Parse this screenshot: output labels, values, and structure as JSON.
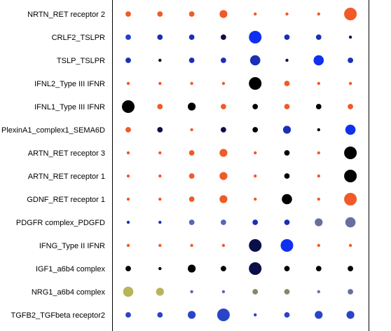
{
  "chart_data": {
    "type": "scatter",
    "title": "",
    "xlabel": "",
    "ylabel": "",
    "grid": false,
    "legend": "none",
    "columns": 8,
    "rows": [
      {
        "label": "NRTN_RET receptor 2",
        "points": [
          {
            "size": 2,
            "color": "#f05a28"
          },
          {
            "size": 2,
            "color": "#f05a28"
          },
          {
            "size": 2,
            "color": "#f05a28"
          },
          {
            "size": 3,
            "color": "#f05a28"
          },
          {
            "size": 1,
            "color": "#f05a28"
          },
          {
            "size": 1,
            "color": "#f05a28"
          },
          {
            "size": 1,
            "color": "#f05a28"
          },
          {
            "size": 5,
            "color": "#f05a28"
          }
        ]
      },
      {
        "label": "CRLF2_TSLPR",
        "points": [
          {
            "size": 2,
            "color": "#1f3fd4"
          },
          {
            "size": 2,
            "color": "#1a2fb8"
          },
          {
            "size": 2,
            "color": "#1a2fb8"
          },
          {
            "size": 2,
            "color": "#0a0f4a"
          },
          {
            "size": 5,
            "color": "#1030f0"
          },
          {
            "size": 2,
            "color": "#1a2fb8"
          },
          {
            "size": 2,
            "color": "#1a2fb8"
          },
          {
            "size": 1,
            "color": "#0a0f4a"
          }
        ]
      },
      {
        "label": "TSLP_TSLPR",
        "points": [
          {
            "size": 2,
            "color": "#1a2fb8"
          },
          {
            "size": 1,
            "color": "#000000"
          },
          {
            "size": 2,
            "color": "#1a2fb8"
          },
          {
            "size": 2,
            "color": "#1a2fb8"
          },
          {
            "size": 4,
            "color": "#1a2fb8"
          },
          {
            "size": 1,
            "color": "#0a0f4a"
          },
          {
            "size": 4,
            "color": "#1030f0"
          },
          {
            "size": 2,
            "color": "#1a2fb8"
          }
        ]
      },
      {
        "label": "IFNL2_Type III IFNR",
        "points": [
          {
            "size": 1,
            "color": "#f05a28"
          },
          {
            "size": 1,
            "color": "#f05a28"
          },
          {
            "size": 1,
            "color": "#f05a28"
          },
          {
            "size": 1,
            "color": "#f05a28"
          },
          {
            "size": 5,
            "color": "#000000"
          },
          {
            "size": 2,
            "color": "#f05a28"
          },
          {
            "size": 1,
            "color": "#f05a28"
          },
          {
            "size": 1,
            "color": "#f05a28"
          }
        ]
      },
      {
        "label": "IFNL1_Type III IFNR",
        "points": [
          {
            "size": 5,
            "color": "#000000"
          },
          {
            "size": 2,
            "color": "#f05a28"
          },
          {
            "size": 3,
            "color": "#000000"
          },
          {
            "size": 2,
            "color": "#f05a28"
          },
          {
            "size": 2,
            "color": "#000000"
          },
          {
            "size": 2,
            "color": "#f05a28"
          },
          {
            "size": 2,
            "color": "#000000"
          },
          {
            "size": 2,
            "color": "#f05a28"
          }
        ]
      },
      {
        "label": "PlexinA1_complex1_SEMA6D",
        "points": [
          {
            "size": 2,
            "color": "#f05a28"
          },
          {
            "size": 2,
            "color": "#0a0f4a"
          },
          {
            "size": 1,
            "color": "#f05a28"
          },
          {
            "size": 2,
            "color": "#0a0f4a"
          },
          {
            "size": 2,
            "color": "#000000"
          },
          {
            "size": 3,
            "color": "#1a2fb8"
          },
          {
            "size": 1,
            "color": "#000000"
          },
          {
            "size": 4,
            "color": "#1030f0"
          }
        ]
      },
      {
        "label": "ARTN_RET receptor 3",
        "points": [
          {
            "size": 1,
            "color": "#f05a28"
          },
          {
            "size": 1,
            "color": "#f05a28"
          },
          {
            "size": 2,
            "color": "#f05a28"
          },
          {
            "size": 3,
            "color": "#f05a28"
          },
          {
            "size": 1,
            "color": "#f05a28"
          },
          {
            "size": 2,
            "color": "#000000"
          },
          {
            "size": 1,
            "color": "#f05a28"
          },
          {
            "size": 5,
            "color": "#000000"
          }
        ]
      },
      {
        "label": "ARTN_RET receptor 1",
        "points": [
          {
            "size": 1,
            "color": "#f05a28"
          },
          {
            "size": 1,
            "color": "#f05a28"
          },
          {
            "size": 2,
            "color": "#f05a28"
          },
          {
            "size": 3,
            "color": "#f05a28"
          },
          {
            "size": 1,
            "color": "#f05a28"
          },
          {
            "size": 2,
            "color": "#000000"
          },
          {
            "size": 1,
            "color": "#f05a28"
          },
          {
            "size": 5,
            "color": "#000000"
          }
        ]
      },
      {
        "label": "GDNF_RET receptor 1",
        "points": [
          {
            "size": 1,
            "color": "#f05a28"
          },
          {
            "size": 1,
            "color": "#f05a28"
          },
          {
            "size": 2,
            "color": "#f05a28"
          },
          {
            "size": 3,
            "color": "#f05a28"
          },
          {
            "size": 1,
            "color": "#f05a28"
          },
          {
            "size": 4,
            "color": "#000000"
          },
          {
            "size": 1,
            "color": "#f05a28"
          },
          {
            "size": 5,
            "color": "#f05a28"
          }
        ]
      },
      {
        "label": "PDGFR complex_PDGFD",
        "points": [
          {
            "size": 1,
            "color": "#1a2fb8"
          },
          {
            "size": 1,
            "color": "#1a2fb8"
          },
          {
            "size": 2,
            "color": "#5866b0"
          },
          {
            "size": 2,
            "color": "#5866b0"
          },
          {
            "size": 2,
            "color": "#1a2fb8"
          },
          {
            "size": 2,
            "color": "#1a2fb8"
          },
          {
            "size": 3,
            "color": "#676f9e"
          },
          {
            "size": 4,
            "color": "#676f9e"
          }
        ]
      },
      {
        "label": "IFNG_Type II IFNR",
        "points": [
          {
            "size": 1,
            "color": "#f05a28"
          },
          {
            "size": 1,
            "color": "#f05a28"
          },
          {
            "size": 1,
            "color": "#f05a28"
          },
          {
            "size": 1,
            "color": "#f05a28"
          },
          {
            "size": 5,
            "color": "#0a0f4a"
          },
          {
            "size": 5,
            "color": "#1030f0"
          },
          {
            "size": 1,
            "color": "#f05a28"
          },
          {
            "size": 1,
            "color": "#f05a28"
          }
        ]
      },
      {
        "label": "IGF1_a6b4 complex",
        "points": [
          {
            "size": 2,
            "color": "#000000"
          },
          {
            "size": 1,
            "color": "#000000"
          },
          {
            "size": 3,
            "color": "#000000"
          },
          {
            "size": 2,
            "color": "#000000"
          },
          {
            "size": 5,
            "color": "#0a0f4a"
          },
          {
            "size": 2,
            "color": "#000000"
          },
          {
            "size": 2,
            "color": "#000000"
          },
          {
            "size": 2,
            "color": "#000000"
          }
        ]
      },
      {
        "label": "NRG1_a6b4 complex",
        "points": [
          {
            "size": 4,
            "color": "#b5b55a"
          },
          {
            "size": 3,
            "color": "#b5b55a"
          },
          {
            "size": 1,
            "color": "#5866b0"
          },
          {
            "size": 1,
            "color": "#5866b0"
          },
          {
            "size": 2,
            "color": "#7f8a6a"
          },
          {
            "size": 2,
            "color": "#7f8a6a"
          },
          {
            "size": 1,
            "color": "#676f9e"
          },
          {
            "size": 2,
            "color": "#676f9e"
          }
        ]
      },
      {
        "label": "TGFB2_TGFbeta receptor2",
        "points": [
          {
            "size": 2,
            "color": "#2a44c8"
          },
          {
            "size": 2,
            "color": "#2a44c8"
          },
          {
            "size": 3,
            "color": "#2a44c8"
          },
          {
            "size": 5,
            "color": "#2a44c8"
          },
          {
            "size": 1,
            "color": "#2a44c8"
          },
          {
            "size": 2,
            "color": "#2a44c8"
          },
          {
            "size": 3,
            "color": "#2a44c8"
          },
          {
            "size": 3,
            "color": "#2a44c8"
          }
        ]
      }
    ]
  }
}
